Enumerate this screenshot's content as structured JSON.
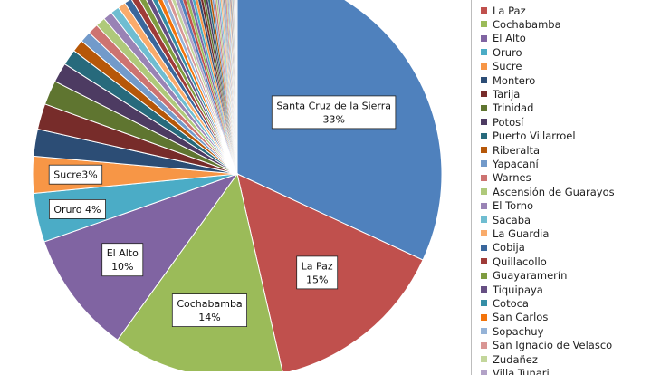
{
  "chart_data": {
    "type": "pie",
    "slices": [
      {
        "name": "Santa Cruz de la Sierra",
        "value": 33,
        "color": "#4F81BD",
        "label_text": [
          "Santa Cruz de la Sierra",
          "33%"
        ]
      },
      {
        "name": "La Paz",
        "value": 15,
        "color": "#C0504D",
        "label_text": [
          "La Paz",
          "15%"
        ]
      },
      {
        "name": "Cochabamba",
        "value": 14,
        "color": "#9BBB59",
        "label_text": [
          "Cochabamba",
          "14%"
        ]
      },
      {
        "name": "El Alto",
        "value": 10,
        "color": "#8064A2",
        "label_text": [
          "El Alto",
          "10%"
        ]
      },
      {
        "name": "Oruro",
        "value": 4,
        "color": "#4BACC6",
        "label_text": [
          "Oruro 4%"
        ]
      },
      {
        "name": "Sucre",
        "value": 3,
        "color": "#F79646",
        "label_text": [
          "Sucre3%"
        ]
      },
      {
        "name": "Montero",
        "value": 2.2,
        "color": "#2C4D75",
        "label_text": []
      },
      {
        "name": "Tarija",
        "value": 2.1,
        "color": "#772C2A",
        "label_text": []
      },
      {
        "name": "Trinidad",
        "value": 2.0,
        "color": "#5F7530",
        "label_text": []
      },
      {
        "name": "Potosí",
        "value": 1.6,
        "color": "#4D3B62",
        "label_text": []
      },
      {
        "name": "Puerto Villarroel",
        "value": 1.3,
        "color": "#276A7C",
        "label_text": []
      },
      {
        "name": "Riberalta",
        "value": 1.0,
        "color": "#B65708",
        "label_text": []
      },
      {
        "name": "Yapacaní",
        "value": 0.9,
        "color": "#729ACA",
        "label_text": []
      },
      {
        "name": "Warnes",
        "value": 0.85,
        "color": "#CD7371",
        "label_text": []
      },
      {
        "name": "Ascensión de Guarayos",
        "value": 0.8,
        "color": "#AFC97A",
        "label_text": []
      },
      {
        "name": "El Torno",
        "value": 0.75,
        "color": "#9983B5",
        "label_text": []
      },
      {
        "name": "Sacaba",
        "value": 0.7,
        "color": "#6FBDD1",
        "label_text": []
      },
      {
        "name": "La Guardia",
        "value": 0.65,
        "color": "#F9AB6B",
        "label_text": []
      },
      {
        "name": "Cobija",
        "value": 0.6,
        "color": "#3A679C",
        "label_text": []
      },
      {
        "name": "Quillacollo",
        "value": 0.55,
        "color": "#9F3B38",
        "label_text": []
      },
      {
        "name": "Guayaramerín",
        "value": 0.5,
        "color": "#7F9C40",
        "label_text": []
      },
      {
        "name": "Tiquipaya",
        "value": 0.45,
        "color": "#664F83",
        "label_text": []
      },
      {
        "name": "Cotoca",
        "value": 0.42,
        "color": "#358EA6",
        "label_text": []
      },
      {
        "name": "San Carlos",
        "value": 0.4,
        "color": "#F3740B",
        "label_text": []
      },
      {
        "name": "Sopachuy",
        "value": 0.37,
        "color": "#95B3D7",
        "label_text": []
      },
      {
        "name": "San Ignacio de Velasco",
        "value": 0.35,
        "color": "#D99694",
        "label_text": []
      },
      {
        "name": "Zudañez",
        "value": 0.33,
        "color": "#C3D69B",
        "label_text": []
      },
      {
        "name": "Villa Tunari",
        "value": 0.31,
        "color": "#B2A2C7",
        "label_text": []
      }
    ],
    "minor_slices_tail": [
      0.3,
      0.29,
      0.28,
      0.27,
      0.26,
      0.25,
      0.24,
      0.23,
      0.22,
      0.21,
      0.2,
      0.19,
      0.18,
      0.17,
      0.16,
      0.15,
      0.14,
      0.13,
      0.12,
      0.11,
      0.1,
      0.1,
      0.09,
      0.09,
      0.08,
      0.08,
      0.07,
      0.07,
      0.06,
      0.06,
      0.05,
      0.05,
      0.05,
      0.04,
      0.04,
      0.04,
      0.03,
      0.03,
      0.03,
      0.03
    ],
    "tail_colors": [
      "#4F81BD",
      "#C0504D",
      "#9BBB59",
      "#8064A2",
      "#4BACC6",
      "#F79646",
      "#2C4D75",
      "#772C2A",
      "#5F7530",
      "#4D3B62",
      "#276A7C",
      "#B65708",
      "#729ACA",
      "#CD7371",
      "#AFC97A",
      "#9983B5",
      "#6FBDD1",
      "#F9AB6B",
      "#A5A5A5",
      "#7F7F7F"
    ],
    "legend": [
      {
        "label": "La Paz",
        "color": "#C0504D"
      },
      {
        "label": "Cochabamba",
        "color": "#9BBB59"
      },
      {
        "label": "El Alto",
        "color": "#8064A2"
      },
      {
        "label": "Oruro",
        "color": "#4BACC6"
      },
      {
        "label": "Sucre",
        "color": "#F79646"
      },
      {
        "label": "Montero",
        "color": "#2C4D75"
      },
      {
        "label": "Tarija",
        "color": "#772C2A"
      },
      {
        "label": "Trinidad",
        "color": "#5F7530"
      },
      {
        "label": "Potosí",
        "color": "#4D3B62"
      },
      {
        "label": "Puerto Villarroel",
        "color": "#276A7C"
      },
      {
        "label": "Riberalta",
        "color": "#B65708"
      },
      {
        "label": "Yapacaní",
        "color": "#729ACA"
      },
      {
        "label": "Warnes",
        "color": "#CD7371"
      },
      {
        "label": "Ascensión de Guarayos",
        "color": "#AFC97A"
      },
      {
        "label": "El Torno",
        "color": "#9983B5"
      },
      {
        "label": "Sacaba",
        "color": "#6FBDD1"
      },
      {
        "label": "La Guardia",
        "color": "#F9AB6B"
      },
      {
        "label": "Cobija",
        "color": "#3A679C"
      },
      {
        "label": "Quillacollo",
        "color": "#9F3B38"
      },
      {
        "label": "Guayaramerín",
        "color": "#7F9C40"
      },
      {
        "label": "Tiquipaya",
        "color": "#664F83"
      },
      {
        "label": "Cotoca",
        "color": "#358EA6"
      },
      {
        "label": "San Carlos",
        "color": "#F3740B"
      },
      {
        "label": "Sopachuy",
        "color": "#95B3D7"
      },
      {
        "label": "San Ignacio de Velasco",
        "color": "#D99694"
      },
      {
        "label": "Zudañez",
        "color": "#C3D69B"
      },
      {
        "label": "Villa Tunari",
        "color": "#B2A2C7"
      }
    ],
    "legend_position": "right"
  }
}
